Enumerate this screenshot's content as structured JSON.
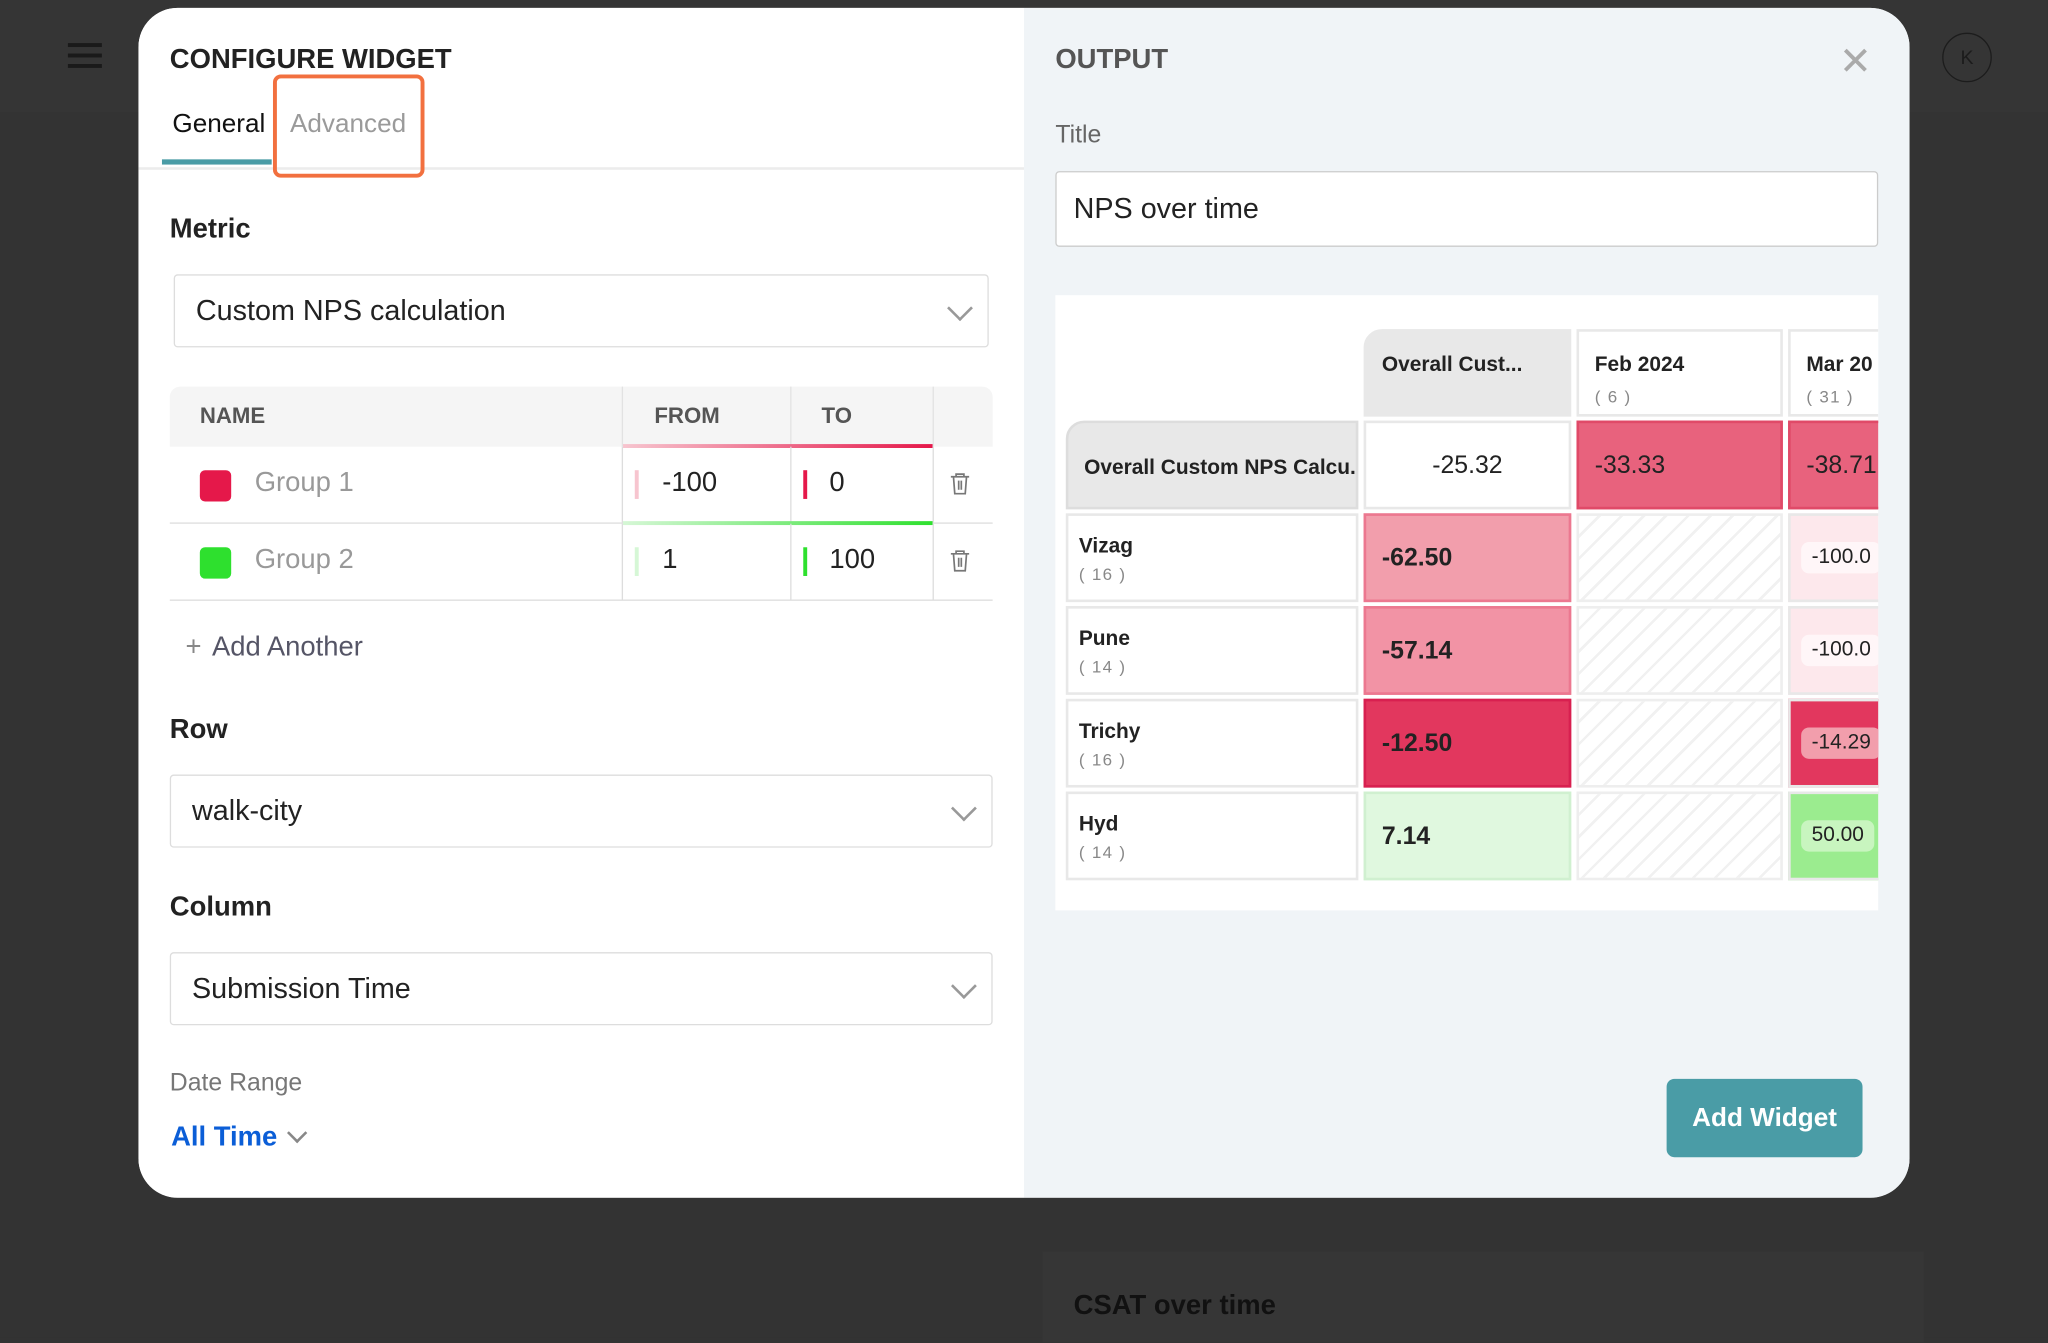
{
  "background": {
    "avatar_initial": "K",
    "card_title": "CSAT over time"
  },
  "config": {
    "title": "CONFIGURE WIDGET",
    "tabs": [
      {
        "label": "General",
        "active": true
      },
      {
        "label": "Advanced",
        "active": false
      }
    ],
    "metric": {
      "label": "Metric",
      "value": "Custom NPS calculation"
    },
    "groups": {
      "headers": [
        "NAME",
        "FROM",
        "TO"
      ],
      "rows": [
        {
          "name": "Group 1",
          "color": "#e5184a",
          "from": "-100",
          "to": "0"
        },
        {
          "name": "Group 2",
          "color": "#2ee02e",
          "from": "1",
          "to": "100"
        }
      ],
      "add_label": "Add Another"
    },
    "row": {
      "label": "Row",
      "value": "walk-city"
    },
    "column": {
      "label": "Column",
      "value": "Submission Time"
    },
    "date_range": {
      "label": "Date Range",
      "value": "All Time"
    }
  },
  "output": {
    "title": "OUTPUT",
    "title_label": "Title",
    "title_value": "NPS over time",
    "table": {
      "columns": [
        {
          "label": "Overall Cust...",
          "count": ""
        },
        {
          "label": "Feb 2024",
          "count": "( 6 )"
        },
        {
          "label": "Mar 20",
          "count": "( 31 )"
        }
      ],
      "overall": {
        "label": "Overall Custom NPS Calcu...",
        "values": [
          "-25.32",
          "-33.33",
          "-38.71"
        ]
      },
      "rows": [
        {
          "name": "Vizag",
          "count": "( 16 )",
          "values": [
            "-62.50",
            "",
            "-100.0"
          ]
        },
        {
          "name": "Pune",
          "count": "( 14 )",
          "values": [
            "-57.14",
            "",
            "-100.0"
          ]
        },
        {
          "name": "Trichy",
          "count": "( 16 )",
          "values": [
            "-12.50",
            "",
            "-14.29"
          ]
        },
        {
          "name": "Hyd",
          "count": "( 14 )",
          "values": [
            "7.14",
            "",
            "50.00"
          ]
        }
      ]
    },
    "add_button": "Add Widget",
    "colors": {
      "accent": "#4a9ca6",
      "highlight": "#f2703f",
      "link": "#0b5ed7"
    }
  }
}
